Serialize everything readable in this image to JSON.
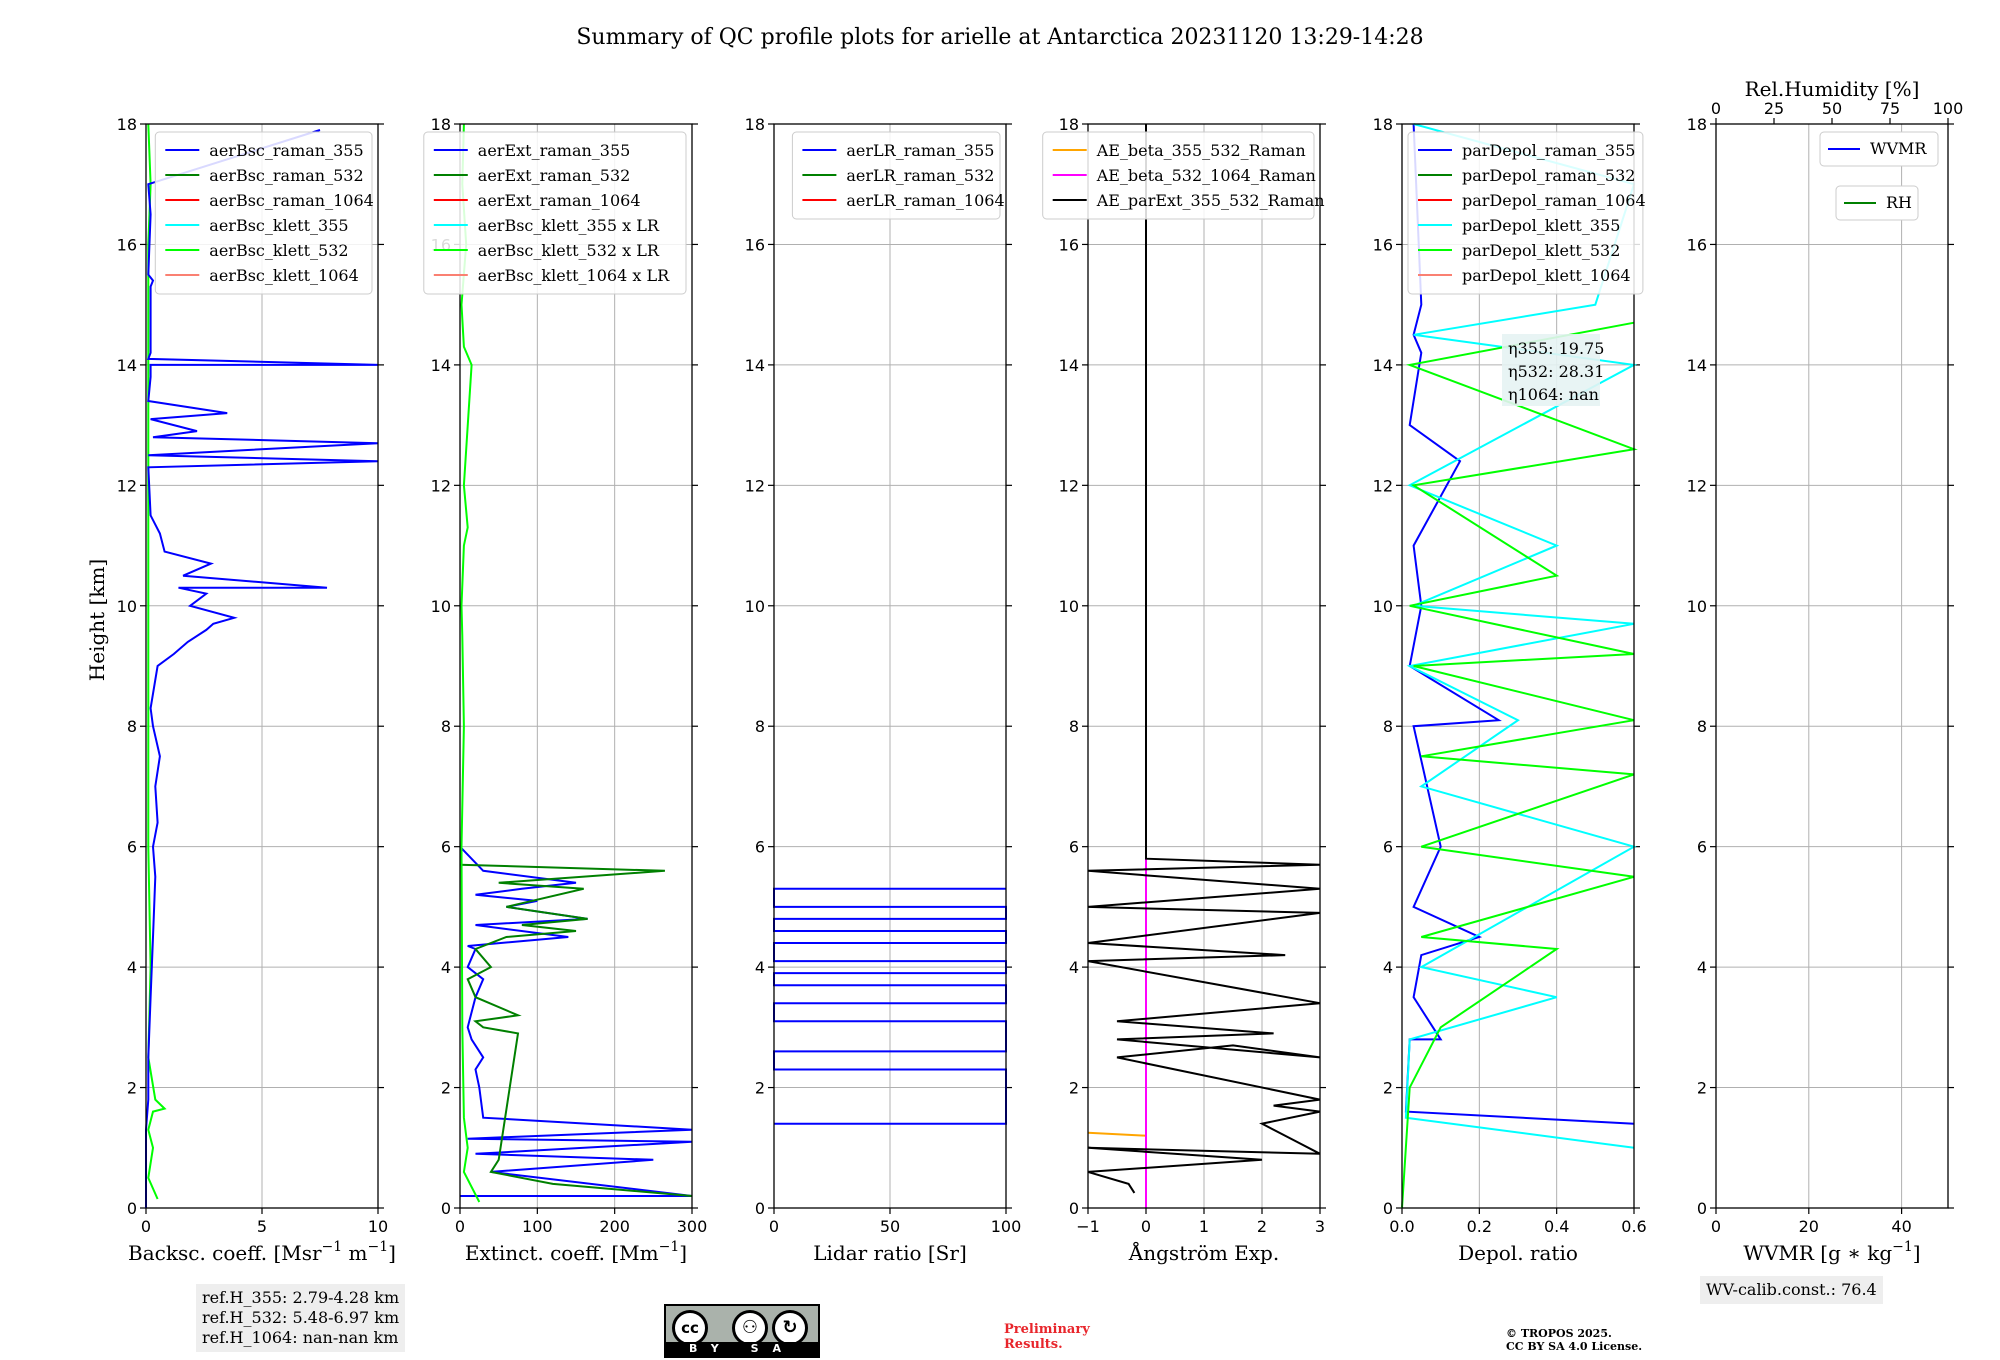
{
  "title": "Summary of QC profile plots for arielle at Antarctica 20231120 13:29-14:28",
  "y_label": "Height [km]",
  "notes": {
    "ref_h_355": "ref.H_355: 2.79-4.28 km",
    "ref_h_532": "ref.H_532: 5.48-6.97 km",
    "ref_h_1064": "ref.H_1064: nan-nan km",
    "wv_calib": "WV-calib.const.: 76.4"
  },
  "license": {
    "by": "BY",
    "sa": "SA",
    "cc": "cc"
  },
  "preliminary": [
    "Preliminary",
    "Results."
  ],
  "copyright": [
    "© TROPOS 2025.",
    "CC BY SA 4.0 License."
  ],
  "colors": {
    "blue": "#0000ff",
    "green": "#008000",
    "red": "#ff0000",
    "cyan": "#00ffff",
    "lime": "#00ff00",
    "salmon": "#fa8072",
    "orange": "#ffa500",
    "magenta": "#ff00ff",
    "black": "#000000"
  },
  "chart_data": [
    {
      "type": "line",
      "xlabel": "Backsc. coeff. [Msr$^{-1}$ m$^{-1}$]",
      "xlabel_main": "Backsc. coeff. [Msr",
      "xlabel_sup1": "−1",
      "xlabel_mid": " m",
      "xlabel_sup2": "−1",
      "xlabel_end": "]",
      "xlim": [
        0,
        10
      ],
      "ylim": [
        0,
        18
      ],
      "xticks": [
        "0",
        "5",
        "10"
      ],
      "yticks": [
        "0",
        "2",
        "4",
        "6",
        "8",
        "10",
        "12",
        "14",
        "16",
        "18"
      ],
      "legend": [
        "aerBsc_raman_355",
        "aerBsc_raman_532",
        "aerBsc_raman_1064",
        "aerBsc_klett_355",
        "aerBsc_klett_532",
        "aerBsc_klett_1064"
      ],
      "legend_colors": [
        "#0000ff",
        "#008000",
        "#ff0000",
        "#00ffff",
        "#00ff00",
        "#fa8072"
      ],
      "legend_position": "upper right",
      "series": [
        {
          "name": "aerBsc_raman_355",
          "color": "#0000ff",
          "x": [
            0,
            0,
            0.1,
            0.1,
            0.2,
            0.3,
            0.4,
            0.3,
            0.5,
            0.4,
            0.6,
            0.3,
            0.2,
            0.5,
            1.2,
            1.8,
            2.6,
            2.9,
            3.8,
            1.9,
            2.6,
            1.4,
            7.8,
            1.6,
            2.8,
            0.8,
            0.6,
            0.2,
            0.1,
            12,
            0.1,
            12,
            0.3,
            2.2,
            0.2,
            3.5,
            0.1,
            0.2,
            0.2,
            12,
            0.1,
            0.2,
            0.2,
            0.3,
            0.1,
            0.2,
            0.1,
            7.5
          ],
          "y": [
            0,
            1.3,
            1.8,
            2.5,
            3.5,
            4.5,
            5.5,
            6.0,
            6.4,
            7.0,
            7.5,
            8.0,
            8.3,
            9.0,
            9.2,
            9.4,
            9.6,
            9.7,
            9.8,
            10.0,
            10.2,
            10.3,
            10.3,
            10.5,
            10.7,
            10.9,
            11.2,
            11.5,
            12.3,
            12.4,
            12.5,
            12.7,
            12.8,
            12.9,
            13.1,
            13.2,
            13.4,
            13.8,
            14.0,
            14.0,
            14.1,
            14.2,
            15.3,
            15.4,
            15.5,
            16.5,
            17.0,
            17.9
          ]
        }
      ],
      "overlay_series": [
        {
          "name": "aerBsc_klett_532",
          "color": "#00ff00",
          "x": [
            0.5,
            0.1,
            0.3,
            0.1,
            0.3,
            0.8,
            0.4,
            0.1,
            0.2,
            0.1,
            0.1,
            0.1,
            0.1,
            0.1,
            0.1,
            0.1,
            0.2,
            0.1
          ],
          "y": [
            0.15,
            0.5,
            1.0,
            1.3,
            1.6,
            1.65,
            1.8,
            2.5,
            4.0,
            6.0,
            8.0,
            10.0,
            12.0,
            14.0,
            15.0,
            16.0,
            17.0,
            18.0
          ]
        }
      ]
    },
    {
      "type": "line",
      "xlabel_main": "Extinct. coeff. [Mm",
      "xlabel_sup1": "−1",
      "xlabel_end": "]",
      "xlim": [
        0,
        300
      ],
      "ylim": [
        0,
        18
      ],
      "xticks": [
        "0",
        "100",
        "200",
        "300"
      ],
      "yticks": [
        "0",
        "2",
        "4",
        "6",
        "8",
        "10",
        "12",
        "14",
        "16",
        "18"
      ],
      "legend": [
        "aerExt_raman_355",
        "aerExt_raman_532",
        "aerExt_raman_1064",
        "aerBsc_klett_355 x LR",
        "aerBsc_klett_532 x LR",
        "aerBsc_klett_1064 x LR"
      ],
      "legend_colors": [
        "#0000ff",
        "#008000",
        "#ff0000",
        "#00ffff",
        "#00ff00",
        "#fa8072"
      ],
      "legend_position": "upper right",
      "series": [
        {
          "name": "aerExt_raman_355",
          "color": "#0000ff",
          "x": [
            0,
            300,
            40,
            250,
            20,
            300,
            10,
            300,
            30,
            25,
            20,
            30,
            15,
            10,
            20,
            30,
            10,
            20,
            10,
            140,
            20,
            165,
            60,
            100,
            20,
            80,
            150,
            30,
            0
          ],
          "y": [
            0.2,
            0.2,
            0.6,
            0.8,
            0.9,
            1.1,
            1.15,
            1.3,
            1.5,
            2.0,
            2.3,
            2.5,
            2.8,
            3.0,
            3.5,
            3.8,
            4.0,
            4.3,
            4.35,
            4.5,
            4.7,
            4.8,
            5.0,
            5.1,
            5.2,
            5.3,
            5.4,
            5.6,
            6.0
          ]
        },
        {
          "name": "aerExt_raman_532",
          "color": "#008000",
          "x": [
            300,
            120,
            40,
            50,
            75,
            30,
            20,
            75,
            20,
            10,
            40,
            20,
            60,
            150,
            80,
            165,
            60,
            160,
            50,
            265,
            0
          ],
          "y": [
            0.2,
            0.4,
            0.6,
            0.8,
            2.9,
            3.0,
            3.1,
            3.2,
            3.5,
            3.8,
            4.0,
            4.3,
            4.5,
            4.6,
            4.7,
            4.8,
            5.0,
            5.3,
            5.4,
            5.6,
            5.7
          ]
        },
        {
          "name": "aerBsc_klett_532 x LR",
          "color": "#00ff00",
          "x": [
            25,
            5,
            10,
            5,
            3,
            2,
            5,
            3,
            2,
            5,
            10,
            5,
            15,
            5,
            2,
            8,
            3,
            5
          ],
          "y": [
            0.1,
            0.6,
            1.0,
            1.5,
            3.0,
            6.0,
            8.0,
            9.5,
            10.0,
            11.0,
            11.3,
            12.0,
            14.0,
            14.3,
            15.0,
            16.0,
            17.0,
            18.0
          ]
        }
      ]
    },
    {
      "type": "line",
      "xlabel": "Lidar ratio [Sr]",
      "xlim": [
        0,
        120
      ],
      "ylim": [
        0,
        18
      ],
      "xticks": [
        "0",
        "50",
        "100"
      ],
      "yticks": [
        "0",
        "2",
        "4",
        "6",
        "8",
        "10",
        "12",
        "14",
        "16",
        "18"
      ],
      "legend": [
        "aerLR_raman_355",
        "aerLR_raman_532",
        "aerLR_raman_1064"
      ],
      "legend_colors": [
        "#0000ff",
        "#008000",
        "#ff0000"
      ],
      "legend_position": "upper right",
      "series": [
        {
          "name": "aerLR_raman_355",
          "color": "#0000ff",
          "x": [
            0,
            120,
            120,
            0,
            0,
            120,
            120,
            0,
            0,
            120,
            120,
            0,
            0,
            120,
            120,
            0,
            0,
            120,
            120,
            0,
            0,
            120,
            120,
            0,
            0,
            120
          ],
          "y": [
            1.4,
            1.4,
            2.3,
            2.3,
            2.6,
            2.6,
            3.1,
            3.1,
            3.4,
            3.4,
            3.7,
            3.7,
            3.9,
            3.9,
            4.1,
            4.1,
            4.4,
            4.4,
            4.6,
            4.6,
            4.8,
            4.8,
            5.0,
            5.0,
            5.3,
            5.3
          ]
        }
      ]
    },
    {
      "type": "line",
      "xlabel": "Ångström Exp.",
      "xlim": [
        -1,
        3
      ],
      "ylim": [
        0,
        18
      ],
      "xticks": [
        "−1",
        "0",
        "1",
        "2",
        "3"
      ],
      "yticks": [
        "0",
        "2",
        "4",
        "6",
        "8",
        "10",
        "12",
        "14",
        "16",
        "18"
      ],
      "legend": [
        "AE_beta_355_532_Raman",
        "AE_beta_532_1064_Raman",
        "AE_parExt_355_532_Raman"
      ],
      "legend_colors": [
        "#ffa500",
        "#ff00ff",
        "#000000"
      ],
      "legend_position": "upper right",
      "series": [
        {
          "name": "AE_beta_355_532_Raman",
          "color": "#ffa500",
          "x": [
            -1,
            0
          ],
          "y": [
            1.25,
            1.2
          ]
        },
        {
          "name": "AE_beta_532_1064_Raman",
          "color": "#ff00ff",
          "x": [
            0,
            0
          ],
          "y": [
            0,
            5.8
          ]
        },
        {
          "name": "AE_parExt_355_532_Raman",
          "color": "#000000",
          "x": [
            -0.2,
            -0.3,
            -1,
            2.0,
            -1,
            3.0,
            2.0,
            3.0,
            2.2,
            3.0,
            -0.5,
            1.5,
            3.0,
            -0.5,
            2.2,
            -0.5,
            3.0,
            -1,
            2.4,
            -1,
            3.0,
            -1,
            3.0,
            -1,
            3.0,
            0,
            0
          ],
          "y": [
            0.25,
            0.4,
            0.6,
            0.8,
            1.0,
            0.9,
            1.4,
            1.6,
            1.7,
            1.8,
            2.5,
            2.7,
            2.5,
            2.8,
            2.9,
            3.1,
            3.4,
            4.1,
            4.2,
            4.4,
            4.9,
            5.0,
            5.3,
            5.6,
            5.7,
            5.8,
            18
          ]
        }
      ]
    },
    {
      "type": "line",
      "xlabel": "Depol. ratio",
      "xlim": [
        0,
        0.6
      ],
      "ylim": [
        0,
        18
      ],
      "xticks": [
        "0.0",
        "0.2",
        "0.4",
        "0.6"
      ],
      "yticks": [
        "0",
        "2",
        "4",
        "6",
        "8",
        "10",
        "12",
        "14",
        "16",
        "18"
      ],
      "legend": [
        "parDepol_raman_355",
        "parDepol_raman_532",
        "parDepol_raman_1064",
        "parDepol_klett_355",
        "parDepol_klett_532",
        "parDepol_klett_1064"
      ],
      "legend_colors": [
        "#0000ff",
        "#008000",
        "#ff0000",
        "#00ffff",
        "#00ff00",
        "#fa8072"
      ],
      "legend_position": "upper left",
      "annotation": [
        "η355: 19.75",
        "η532: 28.31",
        "η1064: nan"
      ],
      "series": [
        {
          "name": "parDepol_raman_355",
          "color": "#0000ff",
          "x": [
            0.6,
            0.01,
            0.02,
            0.1,
            0.03,
            0.05,
            0.2,
            0.03,
            0.1,
            0.03,
            0.25,
            0.02,
            0.05,
            0.03,
            0.15,
            0.02,
            0.05,
            0.03,
            0.05,
            0.03
          ],
          "y": [
            1.4,
            1.6,
            2.8,
            2.8,
            3.5,
            4.2,
            4.5,
            5.0,
            6.0,
            8.0,
            8.1,
            9.0,
            10.0,
            11.0,
            12.4,
            13.0,
            14.2,
            14.5,
            15.0,
            18.0
          ]
        },
        {
          "name": "parDepol_klett_355",
          "color": "#00ffff",
          "x": [
            0.6,
            0.01,
            0.02,
            0.4,
            0.05,
            0.6,
            0.05,
            0.3,
            0.02,
            0.6,
            0.03,
            0.4,
            0.02,
            0.6,
            0.03,
            0.5,
            0.6,
            0.03
          ],
          "y": [
            1.0,
            1.5,
            2.8,
            3.5,
            4.0,
            6.0,
            7.0,
            8.1,
            9.0,
            9.7,
            10.0,
            11.0,
            12.0,
            14.0,
            14.5,
            15.0,
            17.0,
            18.0
          ]
        },
        {
          "name": "parDepol_klett_532",
          "color": "#00ff00",
          "x": [
            0.0,
            0.02,
            0.1,
            0.4,
            0.05,
            0.6,
            0.05,
            0.6,
            0.05,
            0.6,
            0.03,
            0.6,
            0.02,
            0.4,
            0.03,
            0.6,
            0.02,
            0.6
          ],
          "y": [
            0,
            2.0,
            3.0,
            4.3,
            4.5,
            5.5,
            6.0,
            7.2,
            7.5,
            8.1,
            9.0,
            9.2,
            10.0,
            10.5,
            12.0,
            12.6,
            14.0,
            14.7
          ]
        }
      ]
    },
    {
      "type": "line",
      "xlabel_main": "WVMR [g ∗ kg",
      "xlabel_sup1": "−1",
      "xlabel_end": "]",
      "top_label": "Rel.Humidity [%]",
      "xlim": [
        0,
        50
      ],
      "ylim": [
        0,
        18
      ],
      "xticks": [
        "0",
        "20",
        "40"
      ],
      "top_xticks": [
        "0",
        "25",
        "50",
        "75",
        "100"
      ],
      "yticks": [
        "0",
        "2",
        "4",
        "6",
        "8",
        "10",
        "12",
        "14",
        "16",
        "18"
      ],
      "legend": [
        "WVMR",
        "RH"
      ],
      "legend_colors": [
        "#0000ff",
        "#008000"
      ],
      "legend_position": "upper right",
      "series": []
    }
  ]
}
